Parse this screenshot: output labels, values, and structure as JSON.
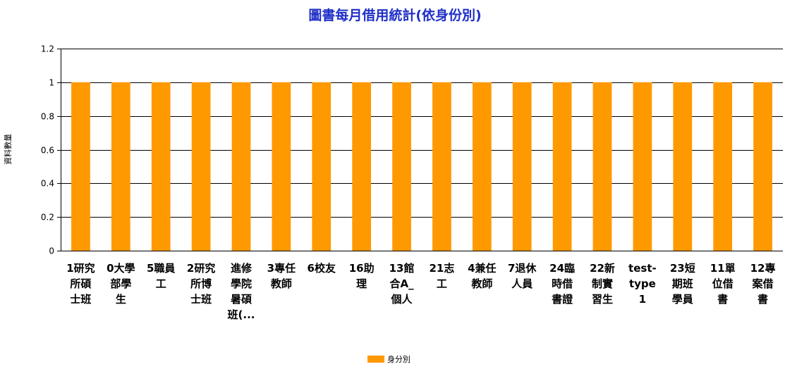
{
  "chart_data": {
    "type": "bar",
    "title": "圖書每月借用統計(依身份別)",
    "ylabel": "資料數量",
    "xlabel": "",
    "ylim": [
      0,
      1.2
    ],
    "yticks": [
      "0",
      "0.2",
      "0.4",
      "0.6",
      "0.8",
      "1",
      "1.2"
    ],
    "grid": true,
    "legend_position": "bottom",
    "categories": [
      "1研究所碩士班",
      "0大學部學生",
      "5職員工",
      "2研究所博士班",
      "進修學院暑碩班(...",
      "3專任教師",
      "6校友",
      "16助理",
      "13館合A_個人",
      "21志工",
      "4兼任教師",
      "7退休人員",
      "24臨時借書證",
      "22新制實習生",
      "test-type1",
      "23短期班學員",
      "11單位借書",
      "12專案借書"
    ],
    "category_lines": [
      [
        "1研究",
        "所碩",
        "士班"
      ],
      [
        "0大學",
        "部學",
        "生"
      ],
      [
        "5職員",
        "工"
      ],
      [
        "2研究",
        "所博",
        "士班"
      ],
      [
        "進修",
        "學院",
        "暑碩",
        "班(..."
      ],
      [
        "3專任",
        "教師"
      ],
      [
        "6校友"
      ],
      [
        "16助",
        "理"
      ],
      [
        "13館",
        "合A_",
        "個人"
      ],
      [
        "21志",
        "工"
      ],
      [
        "4兼任",
        "教師"
      ],
      [
        "7退休",
        "人員"
      ],
      [
        "24臨",
        "時借",
        "書證"
      ],
      [
        "22新",
        "制實",
        "習生"
      ],
      [
        "test-",
        "type",
        "1"
      ],
      [
        "23短",
        "期班",
        "學員"
      ],
      [
        "11單",
        "位借",
        "書"
      ],
      [
        "12專",
        "案借",
        "書"
      ]
    ],
    "series": [
      {
        "name": "身分別",
        "color": "#ff9900",
        "values": [
          1,
          1,
          1,
          1,
          1,
          1,
          1,
          1,
          1,
          1,
          1,
          1,
          1,
          1,
          1,
          1,
          1,
          1
        ]
      }
    ]
  }
}
